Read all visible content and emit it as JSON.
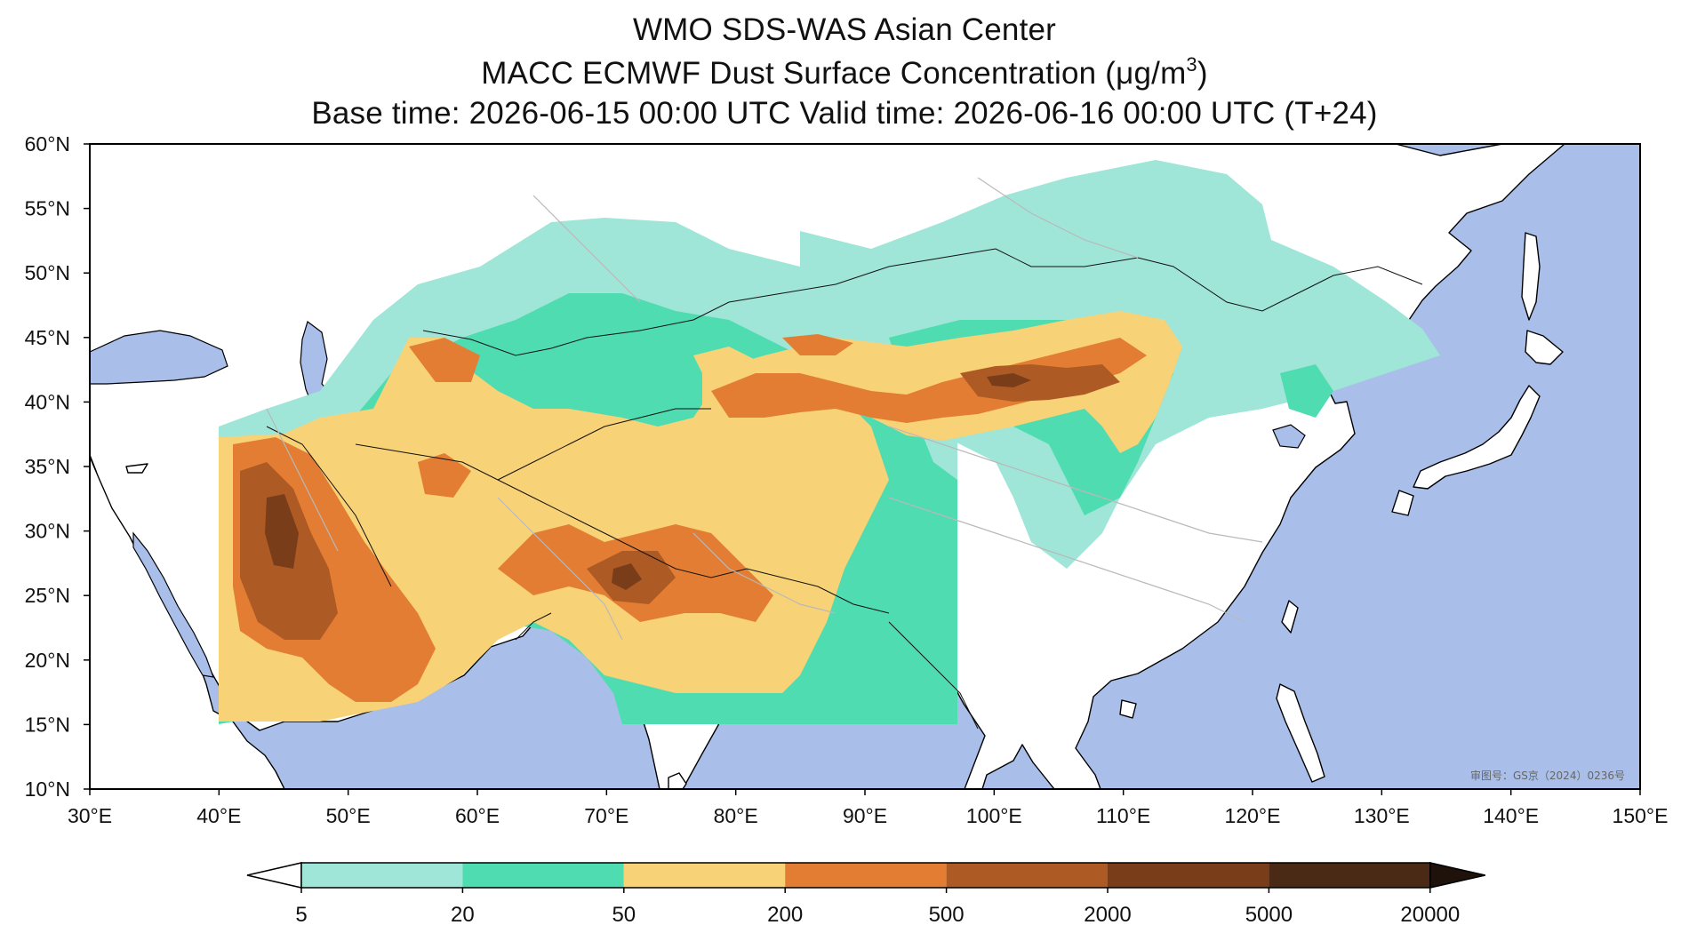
{
  "header": {
    "line1": "WMO SDS-WAS Asian Center",
    "line2_prefix": "MACC ECMWF Dust Surface Concentration (",
    "line2_unit": "μg/m",
    "line2_exp": "3",
    "line2_suffix": ")",
    "line3": "Base time: 2026-06-15 00:00 UTC Valid time: 2026-06-16 00:00 UTC (T+24)"
  },
  "map": {
    "extent": {
      "lon_min": 30,
      "lon_max": 150,
      "lat_min": 10,
      "lat_max": 60
    },
    "data_domain": {
      "lon_min": 40,
      "lon_max": 97,
      "lat_min": 15,
      "lat_max": 60
    },
    "lon_ticks": [
      "30°E",
      "40°E",
      "50°E",
      "60°E",
      "70°E",
      "80°E",
      "90°E",
      "100°E",
      "110°E",
      "120°E",
      "130°E",
      "140°E",
      "150°E"
    ],
    "lat_ticks": [
      "60°N",
      "55°N",
      "50°N",
      "45°N",
      "40°N",
      "35°N",
      "30°N",
      "25°N",
      "20°N",
      "15°N",
      "10°N"
    ],
    "ocean_color": "#a9bfea",
    "land_color": "#ffffff",
    "approval_stamp": "审图号：GS京（2024）0236号"
  },
  "colorbar": {
    "levels": [
      "5",
      "20",
      "50",
      "200",
      "500",
      "2000",
      "5000",
      "20000"
    ],
    "colors": [
      "#9fe6d8",
      "#4fdcb0",
      "#f8d277",
      "#e27d33",
      "#ad5a24",
      "#7a3d1a",
      "#4a2915",
      "#1e120b"
    ],
    "under_color": "#ffffff"
  }
}
